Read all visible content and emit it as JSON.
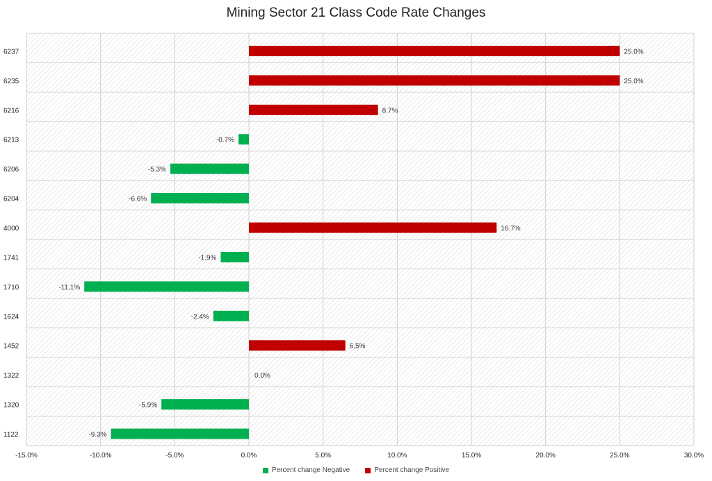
{
  "chart_data": {
    "type": "bar",
    "orientation": "horizontal",
    "title": "Mining Sector 21 Class Code Rate Changes",
    "categories": [
      "6237",
      "6235",
      "6216",
      "6213",
      "6206",
      "6204",
      "4000",
      "1741",
      "1710",
      "1624",
      "1452",
      "1322",
      "1320",
      "1122"
    ],
    "values": [
      25.0,
      25.0,
      8.7,
      -0.7,
      -5.3,
      -6.6,
      16.7,
      -1.9,
      -11.1,
      -2.4,
      6.5,
      0.0,
      -5.9,
      -9.3
    ],
    "data_labels": [
      "25.0%",
      "25.0%",
      "8.7%",
      "-0.7%",
      "-5.3%",
      "-6.6%",
      "16.7%",
      "-1.9%",
      "-11.1%",
      "-2.4%",
      "6.5%",
      "0.0%",
      "-5.9%",
      "-9.3%"
    ],
    "series": [
      {
        "name": "Percent change Negative",
        "color": "#00b050"
      },
      {
        "name": "Percent change Positive",
        "color": "#c00000"
      }
    ],
    "xlim": [
      -15.0,
      30.0
    ],
    "x_ticks": [
      -15.0,
      -10.0,
      -5.0,
      0.0,
      5.0,
      10.0,
      15.0,
      20.0,
      25.0,
      30.0
    ],
    "x_tick_labels": [
      "-15.0%",
      "-10.0%",
      "-5.0%",
      "0.0%",
      "5.0%",
      "10.0%",
      "15.0%",
      "20.0%",
      "25.0%",
      "30.0%"
    ],
    "xlabel": "",
    "ylabel": "",
    "grid": true,
    "legend_position": "bottom"
  }
}
